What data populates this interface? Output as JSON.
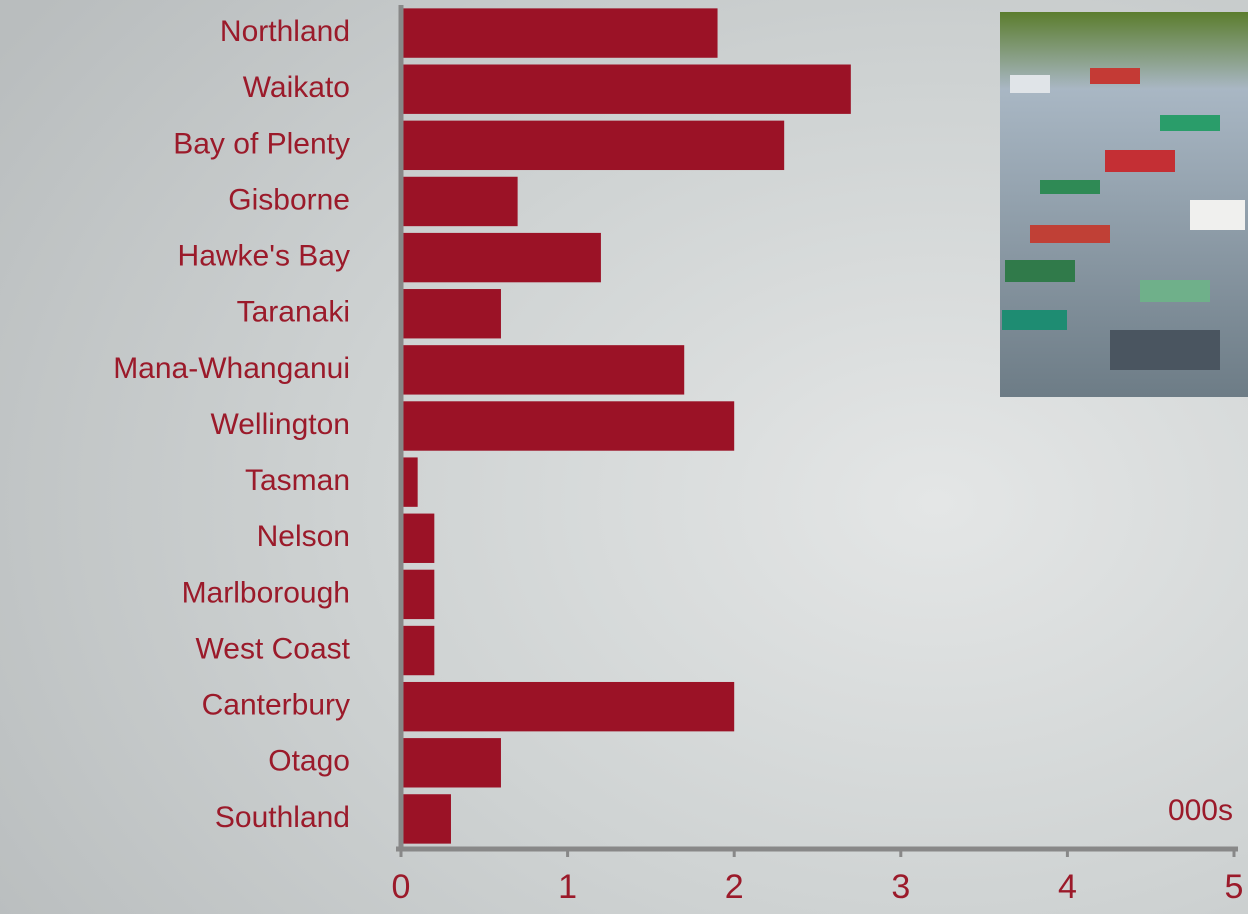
{
  "chart_data": {
    "type": "hbar",
    "categories": [
      "Northland",
      "Waikato",
      "Bay of Plenty",
      "Gisborne",
      "Hawke's Bay",
      "Taranaki",
      "Mana-Whanganui",
      "Wellington",
      "Tasman",
      "Nelson",
      "Marlborough",
      "West Coast",
      "Canterbury",
      "Otago",
      "Southland"
    ],
    "values": [
      1.9,
      2.7,
      2.3,
      0.7,
      1.2,
      0.6,
      1.7,
      2.0,
      0.1,
      0.2,
      0.2,
      0.2,
      2.0,
      0.6,
      0.3
    ],
    "color": "#9b1226",
    "xlabel": "000s",
    "xlim": [
      0,
      5
    ],
    "xticks": [
      0,
      1,
      2,
      3,
      4,
      5
    ],
    "grid": false
  }
}
